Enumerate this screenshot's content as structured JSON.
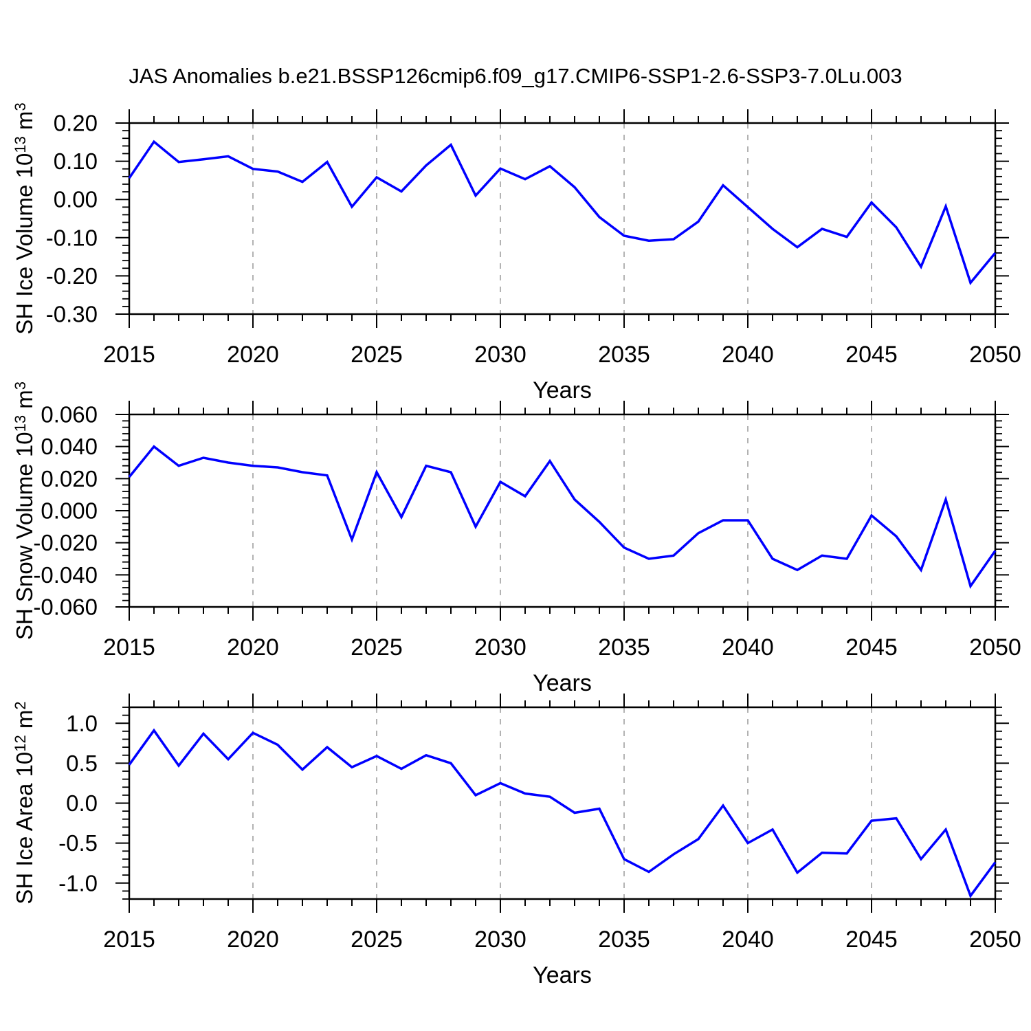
{
  "title": "JAS Anomalies b.e21.BSSP126cmip6.f09_g17.CMIP6-SSP1-2.6-SSP3-7.0Lu.003",
  "line_color": "#0000ff",
  "grid_color": "#a0a0a0",
  "frame_color": "#000000",
  "x_axis": {
    "label": "Years",
    "range": [
      2015,
      2050
    ],
    "major_ticks": [
      2015,
      2020,
      2025,
      2030,
      2035,
      2040,
      2045,
      2050
    ],
    "minor_step": 1,
    "gridlines": [
      2020,
      2025,
      2030,
      2035,
      2040,
      2045
    ]
  },
  "chart_data": [
    {
      "type": "line",
      "ylabel_text": "SH Ice Volume 10^13 m^3",
      "ylabel": {
        "pre": "SH Ice Volume 10",
        "exp1": "13",
        "mid": " m",
        "exp2": "3"
      },
      "ylim": [
        -0.3,
        0.2
      ],
      "yticks": [
        {
          "v": 0.2,
          "label": "0.20"
        },
        {
          "v": 0.1,
          "label": "0.10"
        },
        {
          "v": 0.0,
          "label": "0.00"
        },
        {
          "v": -0.1,
          "label": "-0.10"
        },
        {
          "v": -0.2,
          "label": "-0.20"
        },
        {
          "v": -0.3,
          "label": "-0.30"
        }
      ],
      "y_minor_step": 0.02,
      "x": [
        2015,
        2016,
        2017,
        2018,
        2019,
        2020,
        2021,
        2022,
        2023,
        2024,
        2025,
        2026,
        2027,
        2028,
        2029,
        2030,
        2031,
        2032,
        2033,
        2034,
        2035,
        2036,
        2037,
        2038,
        2039,
        2040,
        2041,
        2042,
        2043,
        2044,
        2045,
        2046,
        2047,
        2048,
        2049,
        2050
      ],
      "values": [
        0.056,
        0.151,
        0.098,
        0.105,
        0.113,
        0.08,
        0.073,
        0.046,
        0.098,
        -0.019,
        0.058,
        0.021,
        0.089,
        0.143,
        0.01,
        0.081,
        0.053,
        0.087,
        0.032,
        -0.046,
        -0.095,
        -0.108,
        -0.104,
        -0.058,
        0.037,
        -0.02,
        -0.077,
        -0.125,
        -0.077,
        -0.098,
        -0.008,
        -0.073,
        -0.176,
        -0.018,
        -0.218,
        -0.14
      ]
    },
    {
      "type": "line",
      "ylabel_text": "SH Snow Volume 10^13 m^3",
      "ylabel": {
        "pre": "SH Snow Volume 10",
        "exp1": "13",
        "mid": " m",
        "exp2": "3"
      },
      "ylim": [
        -0.06,
        0.06
      ],
      "yticks": [
        {
          "v": 0.06,
          "label": "0.060"
        },
        {
          "v": 0.04,
          "label": "0.040"
        },
        {
          "v": 0.02,
          "label": "0.020"
        },
        {
          "v": 0.0,
          "label": "0.000"
        },
        {
          "v": -0.02,
          "label": "-0.020"
        },
        {
          "v": -0.04,
          "label": "-0.040"
        },
        {
          "v": -0.06,
          "label": "-0.060"
        }
      ],
      "y_minor_step": 0.004,
      "x": [
        2015,
        2016,
        2017,
        2018,
        2019,
        2020,
        2021,
        2022,
        2023,
        2024,
        2025,
        2026,
        2027,
        2028,
        2029,
        2030,
        2031,
        2032,
        2033,
        2034,
        2035,
        2036,
        2037,
        2038,
        2039,
        2040,
        2041,
        2042,
        2043,
        2044,
        2045,
        2046,
        2047,
        2048,
        2049,
        2050
      ],
      "values": [
        0.021,
        0.04,
        0.028,
        0.033,
        0.03,
        0.028,
        0.027,
        0.024,
        0.022,
        -0.018,
        0.024,
        -0.004,
        0.028,
        0.024,
        -0.01,
        0.018,
        0.009,
        0.031,
        0.007,
        -0.007,
        -0.023,
        -0.03,
        -0.028,
        -0.014,
        -0.006,
        -0.006,
        -0.03,
        -0.037,
        -0.028,
        -0.03,
        -0.003,
        -0.016,
        -0.037,
        0.007,
        -0.047,
        -0.025
      ]
    },
    {
      "type": "line",
      "ylabel_text": "SH Ice Area 10^12 m^2",
      "ylabel": {
        "pre": "SH Ice Area 10",
        "exp1": "12",
        "mid": " m",
        "exp2": "2"
      },
      "ylim": [
        -1.2,
        1.2
      ],
      "yticks": [
        {
          "v": 1.0,
          "label": "1.0"
        },
        {
          "v": 0.5,
          "label": "0.5"
        },
        {
          "v": 0.0,
          "label": "0.0"
        },
        {
          "v": -0.5,
          "label": "-0.5"
        },
        {
          "v": -1.0,
          "label": "-1.0"
        }
      ],
      "y_minor_step": 0.1,
      "x": [
        2015,
        2016,
        2017,
        2018,
        2019,
        2020,
        2021,
        2022,
        2023,
        2024,
        2025,
        2026,
        2027,
        2028,
        2029,
        2030,
        2031,
        2032,
        2033,
        2034,
        2035,
        2036,
        2037,
        2038,
        2039,
        2040,
        2041,
        2042,
        2043,
        2044,
        2045,
        2046,
        2047,
        2048,
        2049,
        2050
      ],
      "values": [
        0.48,
        0.91,
        0.47,
        0.87,
        0.55,
        0.88,
        0.73,
        0.42,
        0.7,
        0.45,
        0.59,
        0.43,
        0.6,
        0.5,
        0.1,
        0.25,
        0.12,
        0.08,
        -0.12,
        -0.07,
        -0.7,
        -0.86,
        -0.64,
        -0.45,
        -0.03,
        -0.5,
        -0.33,
        -0.87,
        -0.62,
        -0.63,
        -0.22,
        -0.19,
        -0.7,
        -0.33,
        -1.16,
        -0.74
      ]
    }
  ]
}
